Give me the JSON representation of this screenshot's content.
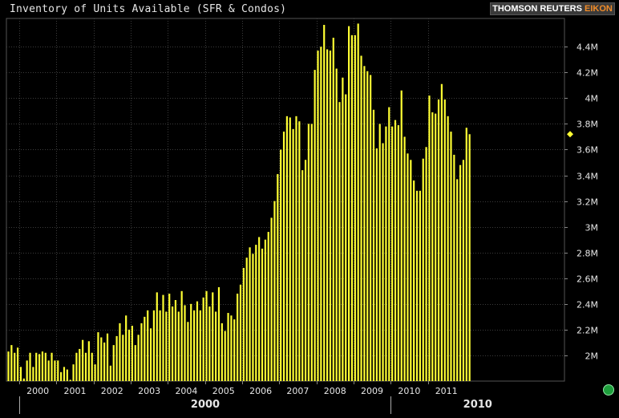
{
  "title": "Inventory of Units Available (SFR & Condos)",
  "brand": {
    "part1": "THOMSON REUTERS ",
    "part2": "EIKON"
  },
  "colors": {
    "bar": "#ffff33",
    "background": "#000000",
    "grid": "#3c3c3c",
    "text": "#e6e6e6",
    "brand_accent": "#f28c28",
    "status_dot": "#1e9e3c"
  },
  "chart_data": {
    "type": "bar",
    "title": "Inventory of Units Available (SFR & Condos)",
    "frequency": "monthly",
    "start": "1999-09",
    "end": "2011-05",
    "ylim": [
      1800000,
      4620000
    ],
    "yticks": [
      {
        "value": 2000000,
        "label": "2M"
      },
      {
        "value": 2200000,
        "label": "2.2M"
      },
      {
        "value": 2400000,
        "label": "2.4M"
      },
      {
        "value": 2600000,
        "label": "2.6M"
      },
      {
        "value": 2800000,
        "label": "2.8M"
      },
      {
        "value": 3000000,
        "label": "3M"
      },
      {
        "value": 3200000,
        "label": "3.2M"
      },
      {
        "value": 3400000,
        "label": "3.4M"
      },
      {
        "value": 3600000,
        "label": "3.6M"
      },
      {
        "value": 3800000,
        "label": "3.8M"
      },
      {
        "value": 4000000,
        "label": "4M"
      },
      {
        "value": 4200000,
        "label": "4.2M"
      },
      {
        "value": 4400000,
        "label": "4.4M"
      }
    ],
    "xticks": [
      "2000",
      "2001",
      "2002",
      "2003",
      "2004",
      "2005",
      "2006",
      "2007",
      "2008",
      "2009",
      "2010",
      "2011"
    ],
    "decades": [
      "2000",
      "2010"
    ],
    "last_value_marker": 3720000,
    "grid": true,
    "values": [
      2030000,
      2080000,
      2020000,
      2060000,
      1910000,
      1820000,
      1960000,
      2020000,
      1910000,
      2020000,
      2010000,
      2030000,
      2020000,
      1960000,
      2020000,
      1960000,
      1960000,
      1870000,
      1910000,
      1890000,
      1810000,
      1930000,
      2020000,
      2050000,
      2120000,
      2020000,
      2110000,
      2020000,
      1930000,
      2180000,
      2140000,
      2100000,
      2170000,
      1920000,
      2080000,
      2150000,
      2250000,
      2160000,
      2310000,
      2200000,
      2230000,
      2080000,
      2160000,
      2250000,
      2300000,
      2350000,
      2210000,
      2350000,
      2490000,
      2350000,
      2470000,
      2340000,
      2480000,
      2380000,
      2430000,
      2340000,
      2500000,
      2390000,
      2260000,
      2400000,
      2350000,
      2420000,
      2350000,
      2450000,
      2500000,
      2380000,
      2490000,
      2340000,
      2530000,
      2250000,
      2190000,
      2330000,
      2310000,
      2280000,
      2480000,
      2550000,
      2680000,
      2760000,
      2840000,
      2790000,
      2860000,
      2920000,
      2830000,
      2900000,
      2960000,
      3070000,
      3200000,
      3410000,
      3600000,
      3740000,
      3860000,
      3850000,
      3760000,
      3860000,
      3820000,
      3440000,
      3520000,
      3800000,
      3800000,
      4220000,
      4370000,
      4400000,
      4570000,
      4380000,
      4370000,
      4470000,
      4230000,
      3970000,
      4160000,
      4030000,
      4560000,
      4490000,
      4490000,
      4580000,
      4330000,
      4250000,
      4210000,
      4180000,
      3910000,
      3610000,
      3800000,
      3650000,
      3780000,
      3930000,
      3780000,
      3830000,
      3790000,
      4060000,
      3700000,
      3570000,
      3520000,
      3360000,
      3280000,
      3280000,
      3530000,
      3620000,
      4020000,
      3890000,
      3880000,
      3990000,
      4110000,
      3990000,
      3860000,
      3740000,
      3560000,
      3370000,
      3480000,
      3520000,
      3770000,
      3720000
    ]
  }
}
